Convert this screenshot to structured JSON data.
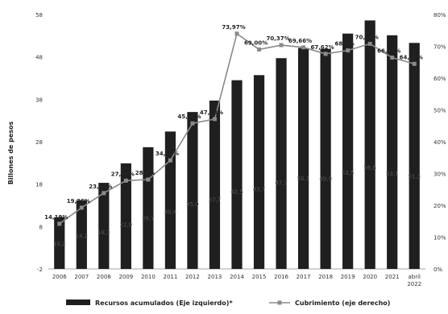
{
  "chart_data": {
    "type": "bar",
    "categories": [
      "2006",
      "2007",
      "2008",
      "2009",
      "2010",
      "2011",
      "2012",
      "2013",
      "2014",
      "2015",
      "2016",
      "2017",
      "2018",
      "2019",
      "2020",
      "2021",
      "abril 2022"
    ],
    "series": [
      {
        "name": "Recursos acumulados (Eje izquierdo)*",
        "type": "bar",
        "axis": "left",
        "color": "#1f1f1f",
        "values": [
          10.2,
          14.2,
          18.3,
          22.9,
          26.7,
          30.4,
          35.0,
          37.7,
          42.5,
          43.7,
          47.7,
          50.1,
          49.9,
          53.5,
          56.6,
          53.1,
          51.3
        ],
        "labels": [
          "10,2",
          "14,2",
          "18,3",
          "22,9",
          "26,7",
          "30,4",
          "35,0",
          "37,7",
          "42,5",
          "43,7",
          "47,7",
          "50,1",
          "49,9",
          "53,5",
          "56,6",
          "53,1",
          "51,3"
        ]
      },
      {
        "name": "Cubrimiento (eje derecho)",
        "type": "line",
        "axis": "right",
        "color": "#8a8a8a",
        "values": [
          14.19,
          19.26,
          23.84,
          27.76,
          28.1,
          34.12,
          45.76,
          47.13,
          73.97,
          69.0,
          70.37,
          69.66,
          67.62,
          68.7,
          70.78,
          66.45,
          64.48
        ],
        "labels": [
          "14,19%",
          "19,26%",
          "23,84%",
          "27,76%",
          "28,1%",
          "34,12%",
          "45,76%",
          "47,13%",
          "73,97%",
          "69,00%",
          "70,37%",
          "69,66%",
          "67,62%",
          "68,7%",
          "70,78%",
          "66,45%",
          "64,48%"
        ]
      }
    ],
    "ylabel": "Billones de pesos",
    "xlabel": "",
    "ylim_left": [
      -2,
      58
    ],
    "yticks_left": [
      "58",
      "48",
      "38",
      "28",
      "18",
      "8",
      "-2"
    ],
    "ylim_right": [
      0,
      80
    ],
    "yticks_right": [
      "80%",
      "70%",
      "60%",
      "50%",
      "40%",
      "30%",
      "20%",
      "10%",
      "0%"
    ],
    "legend": [
      "Recursos acumulados (Eje izquierdo)*",
      "Cubrimiento (eje derecho)"
    ],
    "legend_position": "bottom",
    "grid": false
  }
}
